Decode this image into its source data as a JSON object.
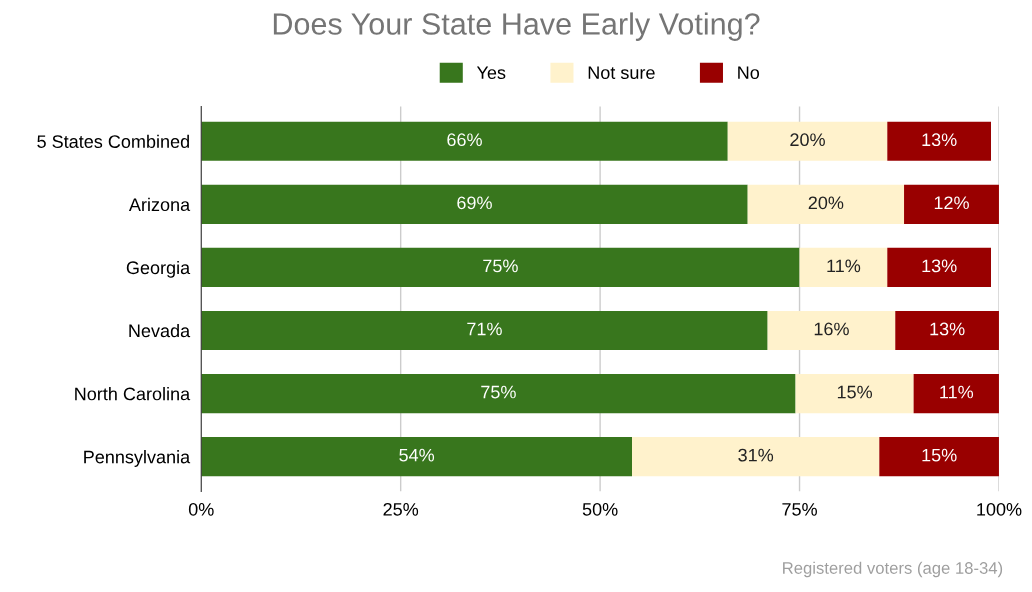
{
  "chart_data": {
    "type": "bar",
    "orientation": "horizontal",
    "stacked": true,
    "title": "Does Your State Have Early Voting?",
    "categories": [
      "5 States Combined",
      "Arizona",
      "Georgia",
      "Nevada",
      "North Carolina",
      "Pennsylvania"
    ],
    "series": [
      {
        "name": "Yes",
        "color": "#38761d",
        "values": [
          66,
          68.5,
          75,
          71,
          74.5,
          54
        ],
        "value_labels": [
          "66%",
          "69%",
          "75%",
          "71%",
          "75%",
          "54%"
        ]
      },
      {
        "name": "Not sure",
        "color": "#fff2cc",
        "values": [
          20,
          19.6,
          11,
          16,
          14.8,
          31
        ],
        "value_labels": [
          "20%",
          "20%",
          "11%",
          "16%",
          "15%",
          "31%"
        ]
      },
      {
        "name": "No",
        "color": "#990000",
        "values": [
          13,
          11.9,
          13,
          13,
          10.7,
          15
        ],
        "value_labels": [
          "13%",
          "12%",
          "13%",
          "13%",
          "11%",
          "15%"
        ]
      }
    ],
    "xlim": [
      0,
      100
    ],
    "xticks": [
      {
        "value": 0,
        "label": "0%"
      },
      {
        "value": 25,
        "label": "25%"
      },
      {
        "value": 50,
        "label": "50%"
      },
      {
        "value": 75,
        "label": "75%"
      },
      {
        "value": 100,
        "label": "100%"
      }
    ],
    "grid": "x",
    "legend": "top",
    "annotations": [
      "Registered voters (age 18-34)"
    ]
  }
}
